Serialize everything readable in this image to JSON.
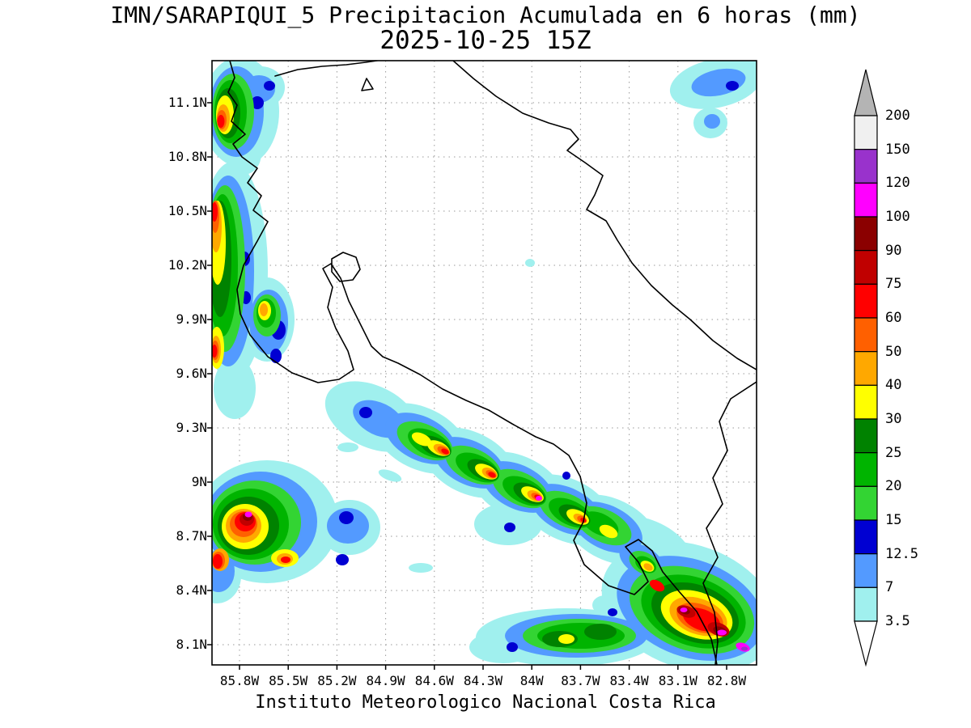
{
  "title": {
    "line1": "IMN/SARAPIQUI_5 Precipitacion Acumulada en 6 horas (mm)",
    "line2": "2025-10-25 15Z"
  },
  "footer": {
    "text": "Instituto Meteorologico Nacional Costa Rica"
  },
  "map": {
    "lat_ticks": [
      "11.1N",
      "10.8N",
      "10.5N",
      "10.2N",
      "9.9N",
      "9.6N",
      "9.3N",
      "9N",
      "8.7N",
      "8.4N",
      "8.1N"
    ],
    "lon_ticks": [
      "85.8W",
      "85.5W",
      "85.2W",
      "84.9W",
      "84.6W",
      "84.3W",
      "84W",
      "83.7W",
      "83.4W",
      "83.1W",
      "82.8W"
    ]
  },
  "colorbar": {
    "tick_labels_top_to_bottom": [
      "200",
      "150",
      "120",
      "100",
      "90",
      "75",
      "60",
      "50",
      "40",
      "30",
      "25",
      "20",
      "15",
      "12.5",
      "7",
      "3.5"
    ],
    "segment_colors_top_to_bottom": [
      "#f0f0f0",
      "#9932cc",
      "#ff00ff",
      "#8b0000",
      "#c00000",
      "#ff0000",
      "#ff6000",
      "#ffa800",
      "#ffff00",
      "#008200",
      "#00b400",
      "#33d433",
      "#0000d2",
      "#539aff",
      "#a0f0ee"
    ],
    "top_arrow_color": "#b4b4b4",
    "bottom_arrow_color": "#ffffff"
  },
  "chart_data": {
    "type": "heatmap",
    "title": "IMN/SARAPIQUI_5 Precipitacion Acumulada en 6 horas (mm)",
    "valid_time": "2025-10-25 15Z",
    "units": "mm",
    "x_tick_labels": [
      "85.8W",
      "85.5W",
      "85.2W",
      "84.9W",
      "84.6W",
      "84.3W",
      "84W",
      "83.7W",
      "83.4W",
      "83.1W",
      "82.8W"
    ],
    "y_tick_labels": [
      "8.1N",
      "8.4N",
      "8.7N",
      "9N",
      "9.3N",
      "9.6N",
      "9.9N",
      "10.2N",
      "10.5N",
      "10.8N",
      "11.1N"
    ],
    "contour_levels_mm": [
      3.5,
      7,
      12.5,
      15,
      20,
      25,
      30,
      40,
      50,
      60,
      75,
      90,
      100,
      120,
      150,
      200
    ],
    "grid": "dotted",
    "legend_position": "right-colorbar",
    "precip_features": [
      {
        "description": "northwest coastal cluster",
        "center_lat_N": 11.0,
        "center_lon_W": 85.85,
        "peak_level_mm": 60
      },
      {
        "description": "west-coast band along left edge",
        "center_lat_N": 10.2,
        "center_lon_W": 85.9,
        "peak_level_mm": 60
      },
      {
        "description": "diagonal central band",
        "from_lat_N": 9.35,
        "from_lon_W": 85.0,
        "to_lat_N": 8.6,
        "to_lon_W": 83.2,
        "peak_level_mm": 100
      },
      {
        "description": "southwest offshore cluster",
        "center_lat_N": 8.75,
        "center_lon_W": 85.6,
        "peak_level_mm": 100
      },
      {
        "description": "southeast cluster near border",
        "center_lat_N": 8.3,
        "center_lon_W": 83.0,
        "peak_level_mm": 120
      },
      {
        "description": "south-coast green band",
        "center_lat_N": 8.15,
        "center_lon_W": 83.75,
        "peak_level_mm": 30
      },
      {
        "description": "northeast light showers",
        "center_lat_N": 11.05,
        "center_lon_W": 82.9,
        "peak_level_mm": 12.5
      }
    ]
  }
}
